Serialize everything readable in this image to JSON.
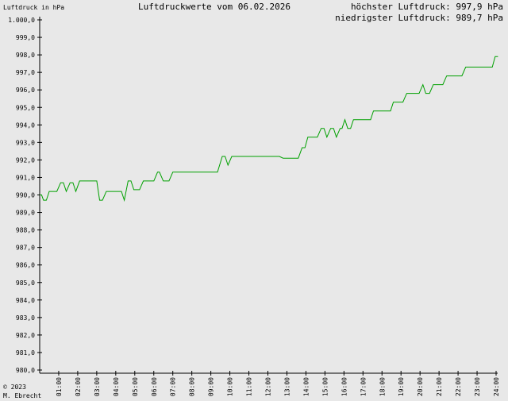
{
  "header": {
    "ylabel": "Luftdruck in hPa",
    "title": "Luftdruckwerte vom 06.02.2026",
    "max_text": "höchster Luftdruck: 997,9 hPa",
    "min_text": "niedrigster Luftdruck: 989,7 hPa"
  },
  "footer": {
    "copyright": "© 2023",
    "author": "M. Ebrecht"
  },
  "colors": {
    "line": "#00a000",
    "background": "#e8e8e8",
    "axis": "#000000"
  },
  "chart_data": {
    "type": "line",
    "title": "Luftdruckwerte vom 06.02.2026",
    "ylabel": "Luftdruck in hPa",
    "xlabel": "",
    "xlim": [
      0,
      24
    ],
    "ylim": [
      980,
      1000
    ],
    "grid": false,
    "y_ticks": [
      {
        "value": 1000,
        "label": "1.000,0"
      },
      {
        "value": 999,
        "label": "999,0"
      },
      {
        "value": 998,
        "label": "998,0"
      },
      {
        "value": 997,
        "label": "997,0"
      },
      {
        "value": 996,
        "label": "996,0"
      },
      {
        "value": 995,
        "label": "995,0"
      },
      {
        "value": 994,
        "label": "994,0"
      },
      {
        "value": 993,
        "label": "993,0"
      },
      {
        "value": 992,
        "label": "992,0"
      },
      {
        "value": 991,
        "label": "991,0"
      },
      {
        "value": 990,
        "label": "990,0"
      },
      {
        "value": 989,
        "label": "989,0"
      },
      {
        "value": 988,
        "label": "988,0"
      },
      {
        "value": 987,
        "label": "987,0"
      },
      {
        "value": 986,
        "label": "986,0"
      },
      {
        "value": 985,
        "label": "985,0"
      },
      {
        "value": 984,
        "label": "984,0"
      },
      {
        "value": 983,
        "label": "983,0"
      },
      {
        "value": 982,
        "label": "982,0"
      },
      {
        "value": 981,
        "label": "981,0"
      },
      {
        "value": 980,
        "label": "980,0"
      }
    ],
    "x_ticks": [
      {
        "value": 1,
        "label": "01:00"
      },
      {
        "value": 2,
        "label": "02:00"
      },
      {
        "value": 3,
        "label": "03:00"
      },
      {
        "value": 4,
        "label": "04:00"
      },
      {
        "value": 5,
        "label": "05:00"
      },
      {
        "value": 6,
        "label": "06:00"
      },
      {
        "value": 7,
        "label": "07:00"
      },
      {
        "value": 8,
        "label": "08:00"
      },
      {
        "value": 9,
        "label": "09:00"
      },
      {
        "value": 10,
        "label": "10:00"
      },
      {
        "value": 11,
        "label": "11:00"
      },
      {
        "value": 12,
        "label": "12:00"
      },
      {
        "value": 13,
        "label": "13:00"
      },
      {
        "value": 14,
        "label": "14:00"
      },
      {
        "value": 15,
        "label": "15:00"
      },
      {
        "value": 16,
        "label": "16:00"
      },
      {
        "value": 17,
        "label": "17:00"
      },
      {
        "value": 18,
        "label": "18:00"
      },
      {
        "value": 19,
        "label": "19:00"
      },
      {
        "value": 20,
        "label": "20:00"
      },
      {
        "value": 21,
        "label": "21:00"
      },
      {
        "value": 22,
        "label": "22:00"
      },
      {
        "value": 23,
        "label": "23:00"
      },
      {
        "value": 24,
        "label": "24:00"
      }
    ],
    "series": [
      {
        "points": [
          [
            0.0,
            990.0
          ],
          [
            0.1,
            990.0
          ],
          [
            0.2,
            989.7
          ],
          [
            0.35,
            989.7
          ],
          [
            0.5,
            990.2
          ],
          [
            0.9,
            990.2
          ],
          [
            1.1,
            990.7
          ],
          [
            1.25,
            990.7
          ],
          [
            1.4,
            990.2
          ],
          [
            1.6,
            990.7
          ],
          [
            1.75,
            990.7
          ],
          [
            1.9,
            990.2
          ],
          [
            2.1,
            990.8
          ],
          [
            3.0,
            990.8
          ],
          [
            3.15,
            989.7
          ],
          [
            3.3,
            989.7
          ],
          [
            3.5,
            990.2
          ],
          [
            4.3,
            990.2
          ],
          [
            4.45,
            989.7
          ],
          [
            4.65,
            990.8
          ],
          [
            4.8,
            990.8
          ],
          [
            4.95,
            990.3
          ],
          [
            5.25,
            990.3
          ],
          [
            5.45,
            990.8
          ],
          [
            6.0,
            990.8
          ],
          [
            6.2,
            991.3
          ],
          [
            6.3,
            991.3
          ],
          [
            6.5,
            990.8
          ],
          [
            6.8,
            990.8
          ],
          [
            7.0,
            991.3
          ],
          [
            9.35,
            991.3
          ],
          [
            9.6,
            992.2
          ],
          [
            9.75,
            992.2
          ],
          [
            9.9,
            991.7
          ],
          [
            10.1,
            992.2
          ],
          [
            12.6,
            992.2
          ],
          [
            12.8,
            992.1
          ],
          [
            13.6,
            992.1
          ],
          [
            13.8,
            992.7
          ],
          [
            13.95,
            992.7
          ],
          [
            14.1,
            993.3
          ],
          [
            14.6,
            993.3
          ],
          [
            14.8,
            993.8
          ],
          [
            14.95,
            993.8
          ],
          [
            15.1,
            993.3
          ],
          [
            15.3,
            993.8
          ],
          [
            15.45,
            993.8
          ],
          [
            15.6,
            993.3
          ],
          [
            15.8,
            993.8
          ],
          [
            15.9,
            993.8
          ],
          [
            16.05,
            994.3
          ],
          [
            16.2,
            993.8
          ],
          [
            16.35,
            993.8
          ],
          [
            16.5,
            994.3
          ],
          [
            17.4,
            994.3
          ],
          [
            17.55,
            994.8
          ],
          [
            18.45,
            994.8
          ],
          [
            18.6,
            995.3
          ],
          [
            19.1,
            995.3
          ],
          [
            19.3,
            995.8
          ],
          [
            19.95,
            995.8
          ],
          [
            20.15,
            996.3
          ],
          [
            20.3,
            995.8
          ],
          [
            20.5,
            995.8
          ],
          [
            20.7,
            996.3
          ],
          [
            21.2,
            996.3
          ],
          [
            21.4,
            996.8
          ],
          [
            22.2,
            996.8
          ],
          [
            22.4,
            997.3
          ],
          [
            23.8,
            997.3
          ],
          [
            23.95,
            997.9
          ],
          [
            24.1,
            997.9
          ]
        ]
      }
    ]
  }
}
